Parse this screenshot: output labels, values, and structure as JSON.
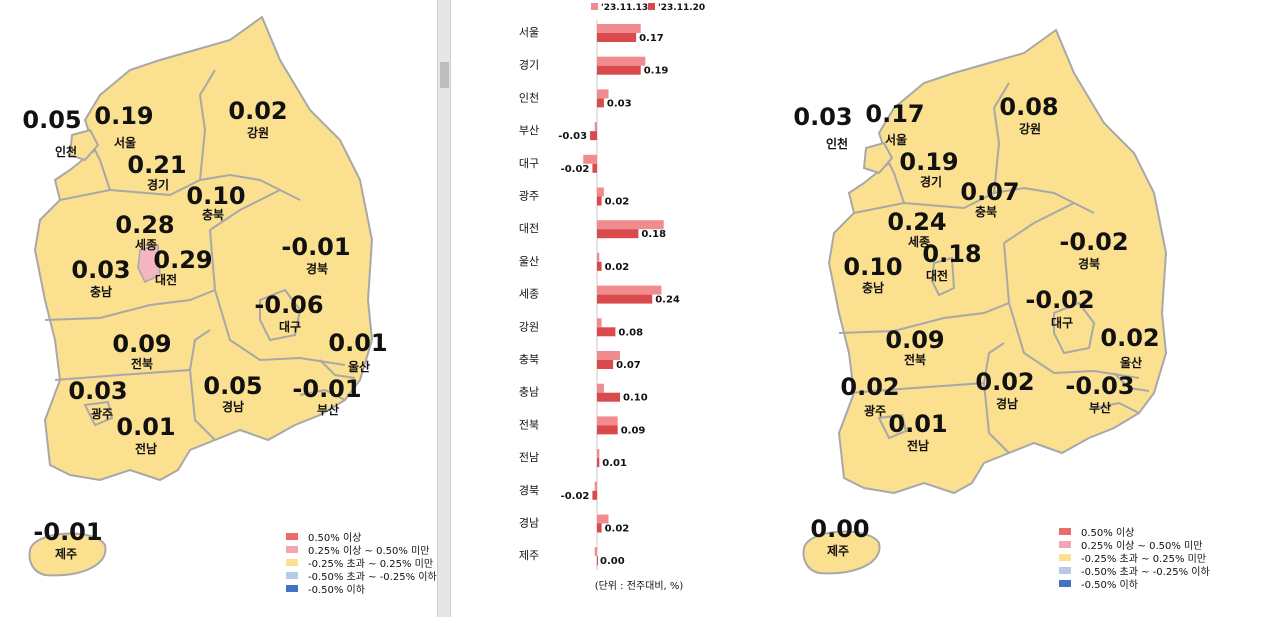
{
  "legend": {
    "items": [
      {
        "label": "0.50% 이상",
        "color": "#ea6b6b"
      },
      {
        "label": "0.25% 이상 ~ 0.50% 미만",
        "color": "#f4a6b0"
      },
      {
        "label": "-0.25% 초과 ~ 0.25% 미만",
        "color": "#fbe08f"
      },
      {
        "label": "-0.50% 초과 ~ -0.25% 이하",
        "color": "#b7c8e8"
      },
      {
        "label": "-0.50% 이하",
        "color": "#4472c4"
      }
    ]
  },
  "colors": {
    "land": "#fbe08f",
    "highlight": "#f4b6c0",
    "border": "#a8a8a8",
    "bar_prev": "#f28b8e",
    "bar_curr": "#d94a4c"
  },
  "map_left": {
    "regions": [
      {
        "name": "인천",
        "value": "0.05"
      },
      {
        "name": "서울",
        "value": "0.19"
      },
      {
        "name": "강원",
        "value": "0.02"
      },
      {
        "name": "경기",
        "value": "0.21"
      },
      {
        "name": "충북",
        "value": "0.10"
      },
      {
        "name": "세종",
        "value": "0.28"
      },
      {
        "name": "대전",
        "value": "0.29"
      },
      {
        "name": "충남",
        "value": "0.03"
      },
      {
        "name": "경북",
        "value": "-0.01"
      },
      {
        "name": "대구",
        "value": "-0.06"
      },
      {
        "name": "전북",
        "value": "0.09"
      },
      {
        "name": "울산",
        "value": "0.01"
      },
      {
        "name": "광주",
        "value": "0.03"
      },
      {
        "name": "경남",
        "value": "0.05"
      },
      {
        "name": "부산",
        "value": "-0.01"
      },
      {
        "name": "전남",
        "value": "0.01"
      },
      {
        "name": "제주",
        "value": "-0.01"
      }
    ]
  },
  "map_right": {
    "regions": [
      {
        "name": "인천",
        "value": "0.03"
      },
      {
        "name": "서울",
        "value": "0.17"
      },
      {
        "name": "강원",
        "value": "0.08"
      },
      {
        "name": "경기",
        "value": "0.19"
      },
      {
        "name": "충북",
        "value": "0.07"
      },
      {
        "name": "세종",
        "value": "0.24"
      },
      {
        "name": "대전",
        "value": "0.18"
      },
      {
        "name": "충남",
        "value": "0.10"
      },
      {
        "name": "경북",
        "value": "-0.02"
      },
      {
        "name": "대구",
        "value": "-0.02"
      },
      {
        "name": "전북",
        "value": "0.09"
      },
      {
        "name": "울산",
        "value": "0.02"
      },
      {
        "name": "광주",
        "value": "0.02"
      },
      {
        "name": "경남",
        "value": "0.02"
      },
      {
        "name": "부산",
        "value": "-0.03"
      },
      {
        "name": "전남",
        "value": "0.01"
      },
      {
        "name": "제주",
        "value": "0.00"
      }
    ]
  },
  "chart_data": {
    "type": "bar",
    "orientation": "horizontal",
    "categories": [
      "서울",
      "경기",
      "인천",
      "부산",
      "대구",
      "광주",
      "대전",
      "울산",
      "세종",
      "강원",
      "충북",
      "충남",
      "전북",
      "전남",
      "경북",
      "경남",
      "제주"
    ],
    "series": [
      {
        "name": "'23.11.13",
        "values": [
          0.19,
          0.21,
          0.05,
          -0.01,
          -0.06,
          0.03,
          0.29,
          0.01,
          0.28,
          0.02,
          0.1,
          0.03,
          0.09,
          0.01,
          -0.01,
          0.05,
          -0.01
        ]
      },
      {
        "name": "'23.11.20",
        "values": [
          0.17,
          0.19,
          0.03,
          -0.03,
          -0.02,
          0.02,
          0.18,
          0.02,
          0.24,
          0.08,
          0.07,
          0.1,
          0.09,
          0.01,
          -0.02,
          0.02,
          0.0
        ]
      }
    ],
    "data_labels": [
      "0.17",
      "0.19",
      "0.03",
      "-0.03",
      "-0.02",
      "0.02",
      "0.18",
      "0.02",
      "0.24",
      "0.08",
      "0.07",
      "0.10",
      "0.09",
      "0.01",
      "-0.02",
      "0.02",
      "0.00"
    ],
    "legend_position": "top",
    "unit_note": "(단위 : 전주대비, %)"
  }
}
